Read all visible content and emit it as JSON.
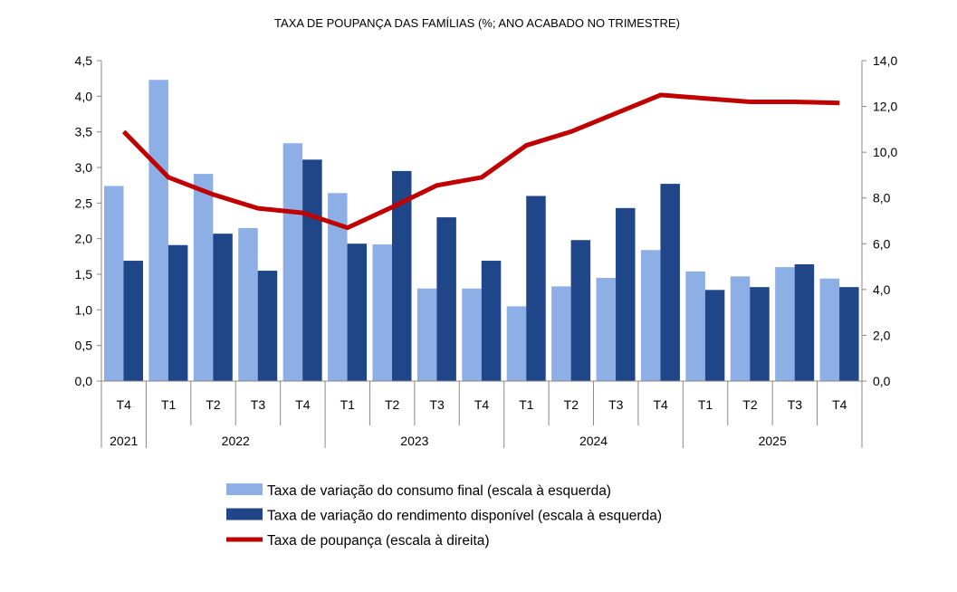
{
  "chart_data": {
    "type": "bar",
    "title": "TAXA DE POUPANÇA DAS FAMÍLIAS (%; ANO ACABADO NO TRIMESTRE)",
    "categories": [
      "T4",
      "T1",
      "T2",
      "T3",
      "T4",
      "T1",
      "T2",
      "T3",
      "T4",
      "T1",
      "T2",
      "T3",
      "T4",
      "T1",
      "T2",
      "T3",
      "T4"
    ],
    "years": [
      {
        "label": "2021",
        "count": 1
      },
      {
        "label": "2022",
        "count": 4
      },
      {
        "label": "2023",
        "count": 4
      },
      {
        "label": "2024",
        "count": 4
      },
      {
        "label": "2025",
        "count": 4
      }
    ],
    "left_axis": {
      "ylim": [
        0,
        4.5
      ],
      "step": 0.5,
      "ticks": [
        "0,0",
        "0,5",
        "1,0",
        "1,5",
        "2,0",
        "2,5",
        "3,0",
        "3,5",
        "4,0",
        "4,5"
      ]
    },
    "right_axis": {
      "ylim": [
        0,
        14
      ],
      "step": 2,
      "ticks": [
        "0,0",
        "2,0",
        "4,0",
        "6,0",
        "8,0",
        "10,0",
        "12,0",
        "14,0"
      ]
    },
    "grid": false,
    "legend_position": "bottom",
    "series": [
      {
        "name": "Taxa de variação do consumo final (escala à esquerda)",
        "type": "bar",
        "axis": "left",
        "color": "#8eaee6",
        "values": [
          2.74,
          4.23,
          2.91,
          2.15,
          3.34,
          2.64,
          1.92,
          1.3,
          1.3,
          1.05,
          1.33,
          1.45,
          1.84,
          1.54,
          1.47,
          1.6,
          1.44
        ]
      },
      {
        "name": "Taxa de variação do rendimento disponível (escala à esquerda)",
        "type": "bar",
        "axis": "left",
        "color": "#1f4688",
        "values": [
          1.69,
          1.91,
          2.07,
          1.55,
          3.11,
          1.93,
          2.95,
          2.3,
          1.69,
          2.6,
          1.98,
          2.43,
          2.77,
          1.28,
          1.32,
          1.64,
          1.32
        ]
      },
      {
        "name": "Taxa de poupança (escala à direita)",
        "type": "line",
        "axis": "right",
        "color": "#c00000",
        "values": [
          10.9,
          8.9,
          8.15,
          7.55,
          7.35,
          6.7,
          7.6,
          8.55,
          8.9,
          10.3,
          10.9,
          11.7,
          12.5,
          12.35,
          12.2,
          12.2,
          12.15
        ]
      }
    ]
  }
}
